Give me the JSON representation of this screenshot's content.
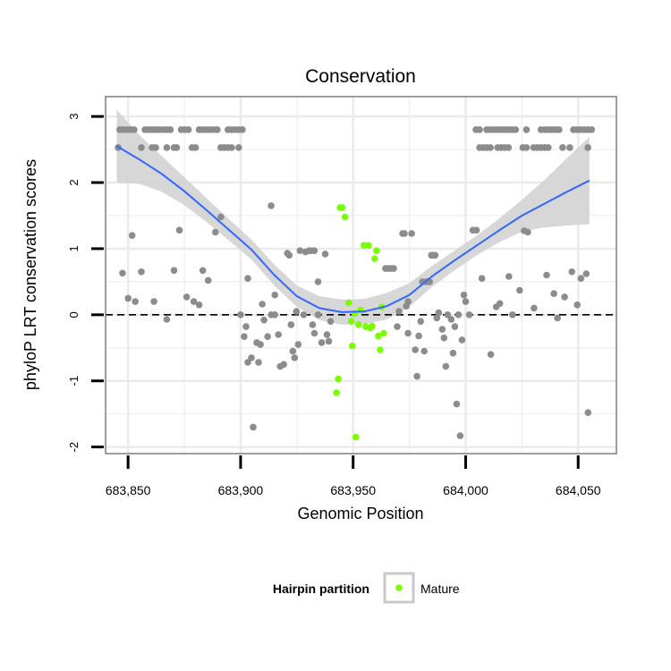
{
  "chart_data": {
    "type": "scatter",
    "title": "Conservation",
    "xlabel": "Genomic Position",
    "ylabel": "phyloP LRT conservation scores",
    "xlim": [
      683840,
      684067
    ],
    "ylim": [
      -2.1,
      3.3
    ],
    "x_ticks": [
      683850,
      683900,
      683950,
      684000,
      684050
    ],
    "x_tick_labels": [
      "683,850",
      "683,900",
      "683,950",
      "684,000",
      "684,050"
    ],
    "y_ticks": [
      -2,
      -1,
      0,
      1,
      2,
      3
    ],
    "y_tick_labels": [
      "-2",
      "-1",
      "0",
      "1",
      "2",
      "3"
    ],
    "reference_line": {
      "y": 0,
      "style": "dashed"
    },
    "legend": {
      "title": "Hairpin partition",
      "placement": "bottom",
      "entries": [
        {
          "label": "Mature",
          "color": "#7cfc00"
        }
      ]
    },
    "colors": {
      "other": "#8c8c8c",
      "mature": "#7cfc00",
      "smooth": "#3366ff",
      "band": "#d3d3d3",
      "grid": "#ebebeb"
    },
    "series": [
      {
        "name": "Other",
        "points": [
          [
            683845.6,
            2.53
          ],
          [
            683846.3,
            2.8
          ],
          [
            683847.9,
            2.8
          ],
          [
            683849.5,
            2.8
          ],
          [
            683851.1,
            2.8
          ],
          [
            683852.7,
            2.8
          ],
          [
            683857.5,
            2.8
          ],
          [
            683859.1,
            2.8
          ],
          [
            683860.7,
            2.8
          ],
          [
            683862.3,
            2.8
          ],
          [
            683863.9,
            2.8
          ],
          [
            683865.6,
            2.8
          ],
          [
            683867.2,
            2.8
          ],
          [
            683868.8,
            2.8
          ],
          [
            683873.6,
            2.8
          ],
          [
            683875.2,
            2.8
          ],
          [
            683876.8,
            2.8
          ],
          [
            683881.6,
            2.8
          ],
          [
            683883.2,
            2.8
          ],
          [
            683884.8,
            2.8
          ],
          [
            683886.4,
            2.8
          ],
          [
            683888.0,
            2.8
          ],
          [
            683889.6,
            2.8
          ],
          [
            683894.4,
            2.8
          ],
          [
            683896.0,
            2.8
          ],
          [
            683897.6,
            2.8
          ],
          [
            683899.2,
            2.8
          ],
          [
            683900.8,
            2.8
          ],
          [
            683855.9,
            2.53
          ],
          [
            683860.7,
            2.53
          ],
          [
            683862.3,
            2.53
          ],
          [
            683867.2,
            2.53
          ],
          [
            683870.4,
            2.53
          ],
          [
            683871.6,
            2.53
          ],
          [
            683878.4,
            2.53
          ],
          [
            683880.0,
            2.53
          ],
          [
            683891.2,
            2.53
          ],
          [
            683892.8,
            2.53
          ],
          [
            683894.4,
            2.53
          ],
          [
            683896.0,
            2.53
          ],
          [
            683899.2,
            2.53
          ],
          [
            684004.6,
            2.8
          ],
          [
            684006.2,
            2.8
          ],
          [
            684009.4,
            2.8
          ],
          [
            684011.0,
            2.8
          ],
          [
            684012.6,
            2.8
          ],
          [
            684014.2,
            2.8
          ],
          [
            684015.8,
            2.8
          ],
          [
            684017.4,
            2.8
          ],
          [
            684019.0,
            2.8
          ],
          [
            684020.6,
            2.8
          ],
          [
            684022.2,
            2.8
          ],
          [
            684027.0,
            2.8
          ],
          [
            684033.5,
            2.8
          ],
          [
            684035.1,
            2.8
          ],
          [
            684036.7,
            2.8
          ],
          [
            684038.3,
            2.8
          ],
          [
            684039.9,
            2.8
          ],
          [
            684041.5,
            2.8
          ],
          [
            684047.9,
            2.8
          ],
          [
            684049.5,
            2.8
          ],
          [
            684051.1,
            2.8
          ],
          [
            684052.7,
            2.8
          ],
          [
            684054.3,
            2.8
          ],
          [
            684056.0,
            2.8
          ],
          [
            684006.2,
            2.53
          ],
          [
            684007.8,
            2.53
          ],
          [
            684009.4,
            2.53
          ],
          [
            684011.0,
            2.53
          ],
          [
            684014.2,
            2.53
          ],
          [
            684015.8,
            2.53
          ],
          [
            684017.4,
            2.53
          ],
          [
            684019.0,
            2.53
          ],
          [
            684025.4,
            2.53
          ],
          [
            684027.0,
            2.53
          ],
          [
            684030.2,
            2.53
          ],
          [
            684031.8,
            2.53
          ],
          [
            684033.5,
            2.53
          ],
          [
            684035.1,
            2.53
          ],
          [
            684036.7,
            2.53
          ],
          [
            684043.1,
            2.53
          ],
          [
            684046.3,
            2.53
          ],
          [
            684054.3,
            2.53
          ],
          [
            683847.5,
            0.63
          ],
          [
            683850.0,
            0.25
          ],
          [
            683851.8,
            1.2
          ],
          [
            683853.2,
            0.2
          ],
          [
            683855.9,
            0.65
          ],
          [
            683861.5,
            0.2
          ],
          [
            683867.2,
            -0.07
          ],
          [
            683870.4,
            0.67
          ],
          [
            683872.8,
            1.28
          ],
          [
            683876.0,
            0.27
          ],
          [
            683879.2,
            0.2
          ],
          [
            683881.6,
            0.15
          ],
          [
            683883.2,
            0.67
          ],
          [
            683885.6,
            0.52
          ],
          [
            683888.8,
            1.25
          ],
          [
            683891.2,
            1.48
          ],
          [
            683900.0,
            0.0
          ],
          [
            683901.6,
            -0.33
          ],
          [
            683902.4,
            -0.18
          ],
          [
            683903.2,
            0.55
          ],
          [
            683903.2,
            -0.72
          ],
          [
            683904.8,
            -0.65
          ],
          [
            683905.6,
            -1.7
          ],
          [
            683907.2,
            -0.42
          ],
          [
            683908.0,
            -0.72
          ],
          [
            683908.8,
            -0.45
          ],
          [
            683909.6,
            0.16
          ],
          [
            683910.4,
            -0.08
          ],
          [
            683912.0,
            -0.33
          ],
          [
            683913.6,
            0.0
          ],
          [
            683913.6,
            1.65
          ],
          [
            683915.2,
            0.3
          ],
          [
            683915.2,
            0.0
          ],
          [
            683916.8,
            -0.3
          ],
          [
            683917.6,
            -0.78
          ],
          [
            683919.2,
            -0.75
          ],
          [
            683920.8,
            0.93
          ],
          [
            683921.6,
            0.9
          ],
          [
            683922.4,
            -0.15
          ],
          [
            683923.2,
            -0.55
          ],
          [
            683924.0,
            -0.65
          ],
          [
            683924.8,
            0.05
          ],
          [
            683925.6,
            -0.45
          ],
          [
            683926.4,
            0.97
          ],
          [
            683928.0,
            0.0
          ],
          [
            683928.8,
            0.95
          ],
          [
            683930.4,
            0.97
          ],
          [
            683931.2,
            0.97
          ],
          [
            683932.0,
            -0.15
          ],
          [
            683932.8,
            -0.28
          ],
          [
            683932.8,
            0.97
          ],
          [
            683934.4,
            0.5
          ],
          [
            683934.4,
            0.0
          ],
          [
            683936.0,
            -0.42
          ],
          [
            683937.6,
            0.92
          ],
          [
            683938.4,
            -0.3
          ],
          [
            683939.2,
            -0.4
          ],
          [
            683940.0,
            -0.1
          ],
          [
            683964.4,
            0.7
          ],
          [
            683965.6,
            0.7
          ],
          [
            683966.8,
            0.7
          ],
          [
            683968.0,
            0.7
          ],
          [
            683969.6,
            -0.18
          ],
          [
            683970.4,
            0.05
          ],
          [
            683972.0,
            1.23
          ],
          [
            683972.8,
            1.23
          ],
          [
            683973.6,
            0.13
          ],
          [
            683974.4,
            0.2
          ],
          [
            683974.4,
            -0.28
          ],
          [
            683976.0,
            1.23
          ],
          [
            683977.6,
            -0.53
          ],
          [
            683978.4,
            -0.93
          ],
          [
            683979.2,
            -0.32
          ],
          [
            683980.0,
            -0.1
          ],
          [
            683980.8,
            0.5
          ],
          [
            683981.6,
            -0.55
          ],
          [
            683982.4,
            0.5
          ],
          [
            683983.2,
            0.5
          ],
          [
            683984.0,
            0.5
          ],
          [
            683984.8,
            0.9
          ],
          [
            683985.6,
            0.9
          ],
          [
            683986.4,
            0.9
          ],
          [
            683987.2,
            -0.05
          ],
          [
            683988.0,
            0.03
          ],
          [
            683989.6,
            -0.22
          ],
          [
            683990.4,
            -0.35
          ],
          [
            683991.2,
            -0.78
          ],
          [
            683992.0,
            0.0
          ],
          [
            683993.6,
            -0.07
          ],
          [
            683994.4,
            -0.58
          ],
          [
            683995.2,
            -0.18
          ],
          [
            683996.0,
            -1.35
          ],
          [
            683996.8,
            0.0
          ],
          [
            683997.6,
            -1.83
          ],
          [
            683998.4,
            -0.38
          ],
          [
            683999.2,
            0.3
          ],
          [
            684000.0,
            0.2
          ],
          [
            684001.6,
            0.0
          ],
          [
            684003.2,
            1.28
          ],
          [
            684004.8,
            1.28
          ],
          [
            684007.2,
            0.55
          ],
          [
            684011.2,
            -0.6
          ],
          [
            684013.6,
            0.12
          ],
          [
            684015.2,
            0.17
          ],
          [
            684019.2,
            0.58
          ],
          [
            684020.8,
            0.0
          ],
          [
            684024.0,
            0.37
          ],
          [
            684026.0,
            1.27
          ],
          [
            684027.6,
            1.25
          ],
          [
            684030.4,
            0.1
          ],
          [
            684036.0,
            0.6
          ],
          [
            684039.2,
            0.32
          ],
          [
            684040.8,
            -0.05
          ],
          [
            684044.0,
            0.27
          ],
          [
            684047.2,
            0.65
          ],
          [
            684049.6,
            0.15
          ],
          [
            684051.2,
            0.55
          ],
          [
            684053.6,
            0.62
          ],
          [
            684054.4,
            -1.48
          ]
        ]
      },
      {
        "name": "Mature",
        "points": [
          [
            683942.6,
            -1.18
          ],
          [
            683943.4,
            -0.97
          ],
          [
            683944.2,
            1.62
          ],
          [
            683945.2,
            1.62
          ],
          [
            683946.4,
            1.48
          ],
          [
            683948.0,
            0.18
          ],
          [
            683949.2,
            -0.1
          ],
          [
            683949.6,
            -0.47
          ],
          [
            683950.8,
            0.02
          ],
          [
            683951.2,
            -1.85
          ],
          [
            683952.4,
            -0.15
          ],
          [
            683953.4,
            0.07
          ],
          [
            683954.8,
            1.05
          ],
          [
            683955.6,
            -0.18
          ],
          [
            683956.8,
            1.05
          ],
          [
            683957.6,
            -0.2
          ],
          [
            683958.4,
            -0.17
          ],
          [
            683959.6,
            0.85
          ],
          [
            683960.4,
            0.97
          ],
          [
            683961.2,
            -0.32
          ],
          [
            683962.0,
            -0.53
          ],
          [
            683962.8,
            0.12
          ],
          [
            683963.6,
            -0.28
          ]
        ]
      }
    ],
    "smooth": {
      "x": [
        683845,
        683855,
        683865,
        683875,
        683885,
        683895,
        683905,
        683915,
        683925,
        683935,
        683945,
        683955,
        683965,
        683975,
        683985,
        683995,
        684005,
        684015,
        684025,
        684035,
        684045,
        684055
      ],
      "y": [
        2.55,
        2.35,
        2.13,
        1.87,
        1.58,
        1.28,
        0.98,
        0.6,
        0.28,
        0.1,
        0.04,
        0.05,
        0.13,
        0.3,
        0.58,
        0.82,
        1.05,
        1.28,
        1.5,
        1.68,
        1.86,
        2.03
      ],
      "lower": [
        2.0,
        1.98,
        1.86,
        1.66,
        1.4,
        1.12,
        0.83,
        0.44,
        0.12,
        -0.08,
        -0.15,
        -0.14,
        -0.07,
        0.12,
        0.42,
        0.67,
        0.9,
        1.1,
        1.26,
        1.32,
        1.35,
        1.37
      ],
      "upper": [
        3.1,
        2.72,
        2.4,
        2.08,
        1.76,
        1.44,
        1.13,
        0.76,
        0.44,
        0.28,
        0.23,
        0.24,
        0.33,
        0.48,
        0.74,
        0.97,
        1.2,
        1.46,
        1.74,
        2.04,
        2.37,
        2.69
      ]
    }
  }
}
